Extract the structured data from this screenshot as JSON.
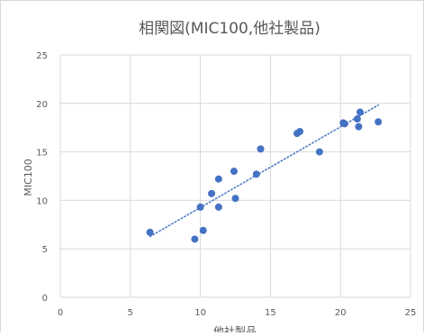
{
  "chart_data": {
    "type": "scatter",
    "title": "相関図(MIC100,他社製品)",
    "xlabel": "他社製品",
    "ylabel": "MIC100",
    "xlim": [
      0,
      25
    ],
    "ylim": [
      0,
      25
    ],
    "x_ticks": [
      "0",
      "5",
      "10",
      "15",
      "20",
      "25"
    ],
    "y_ticks": [
      "0",
      "5",
      "10",
      "15",
      "20",
      "25"
    ],
    "grid": true,
    "legend": "none",
    "trendline": {
      "type": "linear",
      "style": "dotted",
      "x_range": [
        6.4,
        22.7
      ]
    },
    "series": [
      {
        "color": "#4472C4",
        "points": [
          [
            6.4,
            6.7
          ],
          [
            9.6,
            6.0
          ],
          [
            10.0,
            9.3
          ],
          [
            10.2,
            6.9
          ],
          [
            10.8,
            10.7
          ],
          [
            11.3,
            12.2
          ],
          [
            11.3,
            9.3
          ],
          [
            12.4,
            13.0
          ],
          [
            12.5,
            10.2
          ],
          [
            14.0,
            12.7
          ],
          [
            14.3,
            15.3
          ],
          [
            16.9,
            16.9
          ],
          [
            17.1,
            17.1
          ],
          [
            18.5,
            15.0
          ],
          [
            20.2,
            18.0
          ],
          [
            20.3,
            17.9
          ],
          [
            21.2,
            18.4
          ],
          [
            21.3,
            17.6
          ],
          [
            21.4,
            19.1
          ],
          [
            22.7,
            18.1
          ]
        ]
      }
    ]
  }
}
